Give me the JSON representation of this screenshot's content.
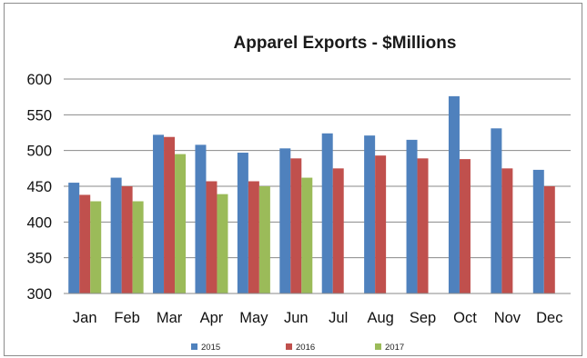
{
  "chart_data": {
    "type": "bar",
    "title": "Apparel Exports - $Millions",
    "xlabel": "",
    "ylabel": "",
    "categories": [
      "Jan",
      "Feb",
      "Mar",
      "Apr",
      "May",
      "Jun",
      "Jul",
      "Aug",
      "Sep",
      "Oct",
      "Nov",
      "Dec"
    ],
    "series": [
      {
        "name": "2015",
        "color": "#4f81bd",
        "values": [
          455,
          462,
          522,
          508,
          497,
          503,
          524,
          521,
          515,
          576,
          531,
          473
        ]
      },
      {
        "name": "2016",
        "color": "#c0504d",
        "values": [
          438,
          450,
          519,
          457,
          457,
          489,
          475,
          493,
          489,
          488,
          475,
          450
        ]
      },
      {
        "name": "2017",
        "color": "#9bbb59",
        "values": [
          429,
          429,
          495,
          439,
          450,
          462,
          null,
          null,
          null,
          null,
          null,
          null
        ]
      }
    ],
    "yticks": [
      300,
      350,
      400,
      450,
      500,
      550,
      600
    ],
    "ylim": [
      300,
      600
    ],
    "grid": true,
    "legend_position": "bottom"
  }
}
